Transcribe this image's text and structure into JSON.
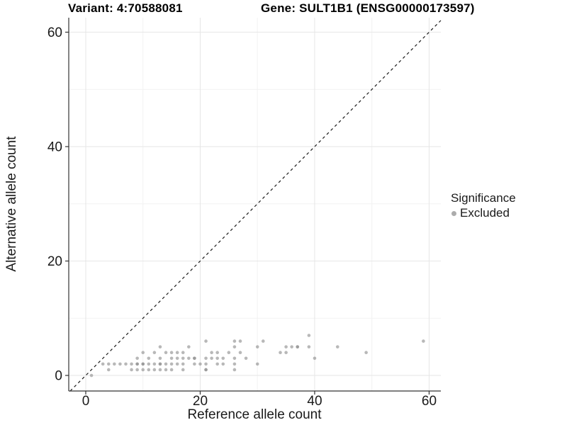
{
  "chart_data": {
    "type": "scatter",
    "title_left": "Variant: 4:70588081",
    "title_right": "Gene: SULT1B1 (ENSG00000173597)",
    "xlabel": "Reference allele count",
    "ylabel": "Alternative allele count",
    "xticks": [
      0,
      20,
      40,
      60
    ],
    "yticks": [
      0,
      20,
      40,
      60
    ],
    "minor_ticks": [
      10,
      30,
      50
    ],
    "xlim": [
      -2.97,
      62.05
    ],
    "ylim": [
      -2.72,
      62.53
    ],
    "grid": true,
    "identity_line": {
      "equation": "y = x",
      "style": "dashed",
      "color": "#1a1a1a"
    },
    "legend": {
      "position": "right",
      "title": "Significance",
      "items": [
        {
          "label": "Excluded",
          "color": "#8c8c8c"
        }
      ]
    },
    "colors": {
      "point": "#8c8c8c",
      "grid_major": "#e6e6e6",
      "grid_minor": "#f2f2f2",
      "axis_line": "#333333",
      "tick_text": "#1a1a1a"
    },
    "series": [
      {
        "name": "Excluded",
        "color": "#8c8c8c",
        "points": [
          [
            1,
            0
          ],
          [
            4,
            1
          ],
          [
            8,
            1
          ],
          [
            9,
            1
          ],
          [
            10,
            1
          ],
          [
            11,
            1
          ],
          [
            12,
            1
          ],
          [
            13,
            1
          ],
          [
            14,
            1
          ],
          [
            15,
            1
          ],
          [
            17,
            1
          ],
          [
            21,
            1
          ],
          [
            21,
            1
          ],
          [
            26,
            1
          ],
          [
            3,
            2
          ],
          [
            4,
            2
          ],
          [
            5,
            2
          ],
          [
            6,
            2
          ],
          [
            7,
            2
          ],
          [
            8,
            2
          ],
          [
            9,
            2
          ],
          [
            9,
            2
          ],
          [
            10,
            2
          ],
          [
            10,
            2
          ],
          [
            11,
            2
          ],
          [
            12,
            2
          ],
          [
            13,
            2
          ],
          [
            13,
            2
          ],
          [
            14,
            2
          ],
          [
            15,
            2
          ],
          [
            16,
            2
          ],
          [
            17,
            2
          ],
          [
            19,
            2
          ],
          [
            20,
            2
          ],
          [
            21,
            2
          ],
          [
            23,
            2
          ],
          [
            24,
            2
          ],
          [
            26,
            2
          ],
          [
            30,
            2
          ],
          [
            9,
            3
          ],
          [
            11,
            3
          ],
          [
            13,
            3
          ],
          [
            15,
            3
          ],
          [
            16,
            3
          ],
          [
            17,
            3
          ],
          [
            18,
            3
          ],
          [
            19,
            3
          ],
          [
            19,
            3
          ],
          [
            21,
            3
          ],
          [
            22,
            3
          ],
          [
            23,
            3
          ],
          [
            24,
            3
          ],
          [
            26,
            3
          ],
          [
            28,
            3
          ],
          [
            40,
            3
          ],
          [
            10,
            4
          ],
          [
            12,
            4
          ],
          [
            14,
            4
          ],
          [
            15,
            4
          ],
          [
            16,
            4
          ],
          [
            17,
            4
          ],
          [
            22,
            4
          ],
          [
            23,
            4
          ],
          [
            25,
            4
          ],
          [
            27,
            4
          ],
          [
            34,
            4
          ],
          [
            35,
            4
          ],
          [
            49,
            4
          ],
          [
            13,
            5
          ],
          [
            18,
            5
          ],
          [
            26,
            5
          ],
          [
            30,
            5
          ],
          [
            35,
            5
          ],
          [
            36,
            5
          ],
          [
            37,
            5
          ],
          [
            37,
            5
          ],
          [
            39,
            5
          ],
          [
            44,
            5
          ],
          [
            21,
            6
          ],
          [
            26,
            6
          ],
          [
            27,
            6
          ],
          [
            31,
            6
          ],
          [
            59,
            6
          ],
          [
            39,
            7
          ]
        ]
      }
    ]
  }
}
